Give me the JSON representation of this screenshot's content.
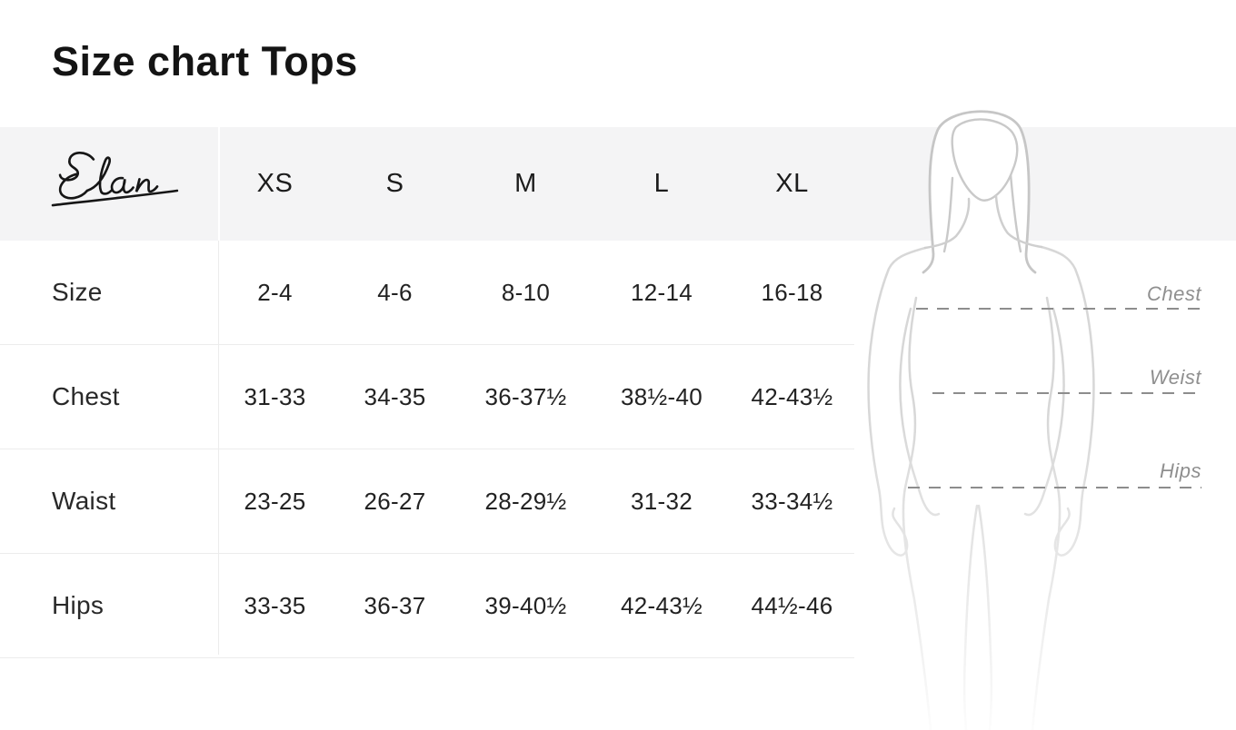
{
  "page": {
    "title": "Size chart Tops"
  },
  "brand": {
    "name": "Elan"
  },
  "chart_data": {
    "type": "table",
    "title": "Size chart Tops",
    "brand": "Elan",
    "columns": [
      "XS",
      "S",
      "M",
      "L",
      "XL"
    ],
    "rows": [
      {
        "label": "Size",
        "values": [
          "2-4",
          "4-6",
          "8-10",
          "12-14",
          "16-18"
        ]
      },
      {
        "label": "Chest",
        "values": [
          "31-33",
          "34-35",
          "36-37½",
          "38½-40",
          "42-43½"
        ]
      },
      {
        "label": "Waist",
        "values": [
          "23-25",
          "26-27",
          "28-29½",
          "31-32",
          "33-34½"
        ]
      },
      {
        "label": "Hips",
        "values": [
          "33-35",
          "36-37",
          "39-40½",
          "42-43½",
          "44½-46"
        ]
      }
    ]
  },
  "figure": {
    "measure_labels": [
      {
        "text": "Chest"
      },
      {
        "text": "Weist"
      },
      {
        "text": "Hips"
      }
    ]
  },
  "colors": {
    "header_band": "#f4f4f5",
    "row_divider": "#ececec",
    "dash_line": "#8d8d8d",
    "measure_label_gray": "#8f8f8f",
    "figure_stroke": "#d7d7d7",
    "hair_stroke": "#c6c6c6",
    "text": "#1e1e1e"
  }
}
